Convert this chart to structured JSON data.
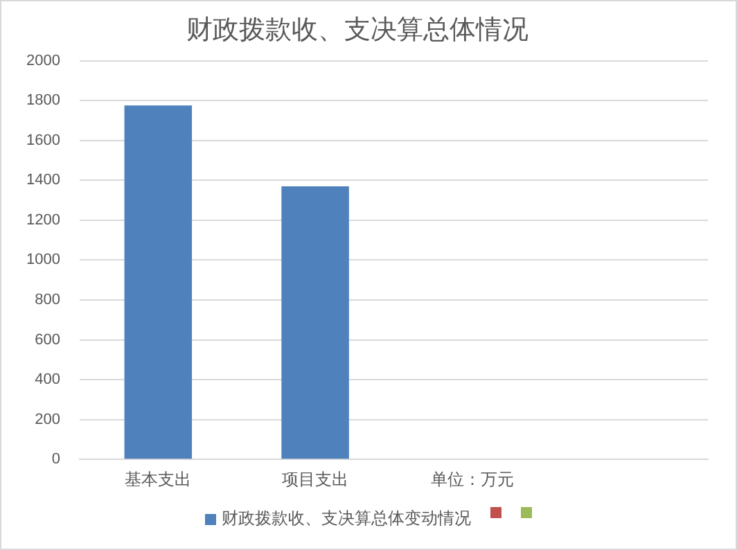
{
  "chart_data": {
    "type": "bar",
    "title": "财政拨款收、支决算总体情况",
    "categories": [
      "基本支出",
      "项目支出",
      "单位：万元",
      null
    ],
    "series": [
      {
        "name": "财政拨款收、支决算总体变动情况",
        "color": "#4f81bd",
        "values": [
          1775,
          1370,
          null,
          null
        ]
      },
      {
        "color": "#c0504d",
        "values": [
          null,
          null,
          null,
          null
        ]
      },
      {
        "color": "#9bbb59",
        "values": [
          null,
          null,
          null,
          null
        ]
      }
    ],
    "ylim": [
      0,
      2000
    ],
    "yticks": [
      0,
      200,
      400,
      600,
      800,
      1000,
      1200,
      1400,
      1600,
      1800,
      2000
    ],
    "grid": "y",
    "legend": "bottom"
  }
}
